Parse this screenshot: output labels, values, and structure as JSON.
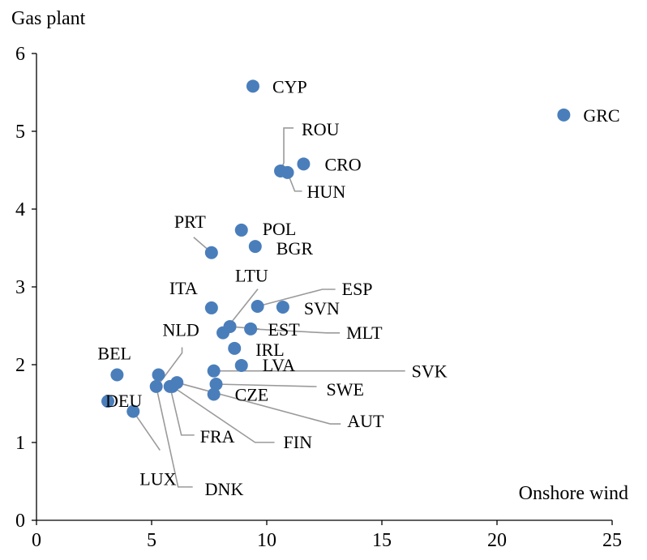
{
  "chart_data": {
    "type": "scatter",
    "title": "",
    "xlabel": "Onshore wind",
    "ylabel": "Gas plant",
    "xlim": [
      0,
      25
    ],
    "ylim": [
      0,
      6
    ],
    "x_ticks": [
      0,
      5,
      10,
      15,
      20,
      25
    ],
    "y_ticks": [
      0,
      1,
      2,
      3,
      4,
      5,
      6
    ],
    "grid": false,
    "marker_color": "#4A7EBB",
    "leader_color": "#9A9A9A",
    "points": [
      {
        "label": "CYP",
        "x": 9.4,
        "y": 5.58
      },
      {
        "label": "GRC",
        "x": 22.9,
        "y": 5.21
      },
      {
        "label": "ROU",
        "x": 10.6,
        "y": 4.49
      },
      {
        "label": "CRO",
        "x": 11.6,
        "y": 4.58
      },
      {
        "label": "HUN",
        "x": 10.9,
        "y": 4.47
      },
      {
        "label": "POL",
        "x": 8.9,
        "y": 3.73
      },
      {
        "label": "BGR",
        "x": 9.5,
        "y": 3.52
      },
      {
        "label": "PRT",
        "x": 7.6,
        "y": 3.44
      },
      {
        "label": "ITA",
        "x": 7.6,
        "y": 2.73
      },
      {
        "label": "LTU",
        "x": 8.1,
        "y": 2.41
      },
      {
        "label": "ESP",
        "x": 9.6,
        "y": 2.75
      },
      {
        "label": "SVN",
        "x": 10.7,
        "y": 2.74
      },
      {
        "label": "EST",
        "x": 8.4,
        "y": 2.49
      },
      {
        "label": "MLT",
        "x": 9.3,
        "y": 2.46
      },
      {
        "label": "IRL",
        "x": 8.6,
        "y": 2.21
      },
      {
        "label": "LVA",
        "x": 8.9,
        "y": 1.99
      },
      {
        "label": "SVK",
        "x": 7.7,
        "y": 1.92
      },
      {
        "label": "BEL",
        "x": 3.5,
        "y": 1.87
      },
      {
        "label": "NLD",
        "x": 5.3,
        "y": 1.87
      },
      {
        "label": "SWE",
        "x": 7.8,
        "y": 1.75
      },
      {
        "label": "CZE",
        "x": 7.7,
        "y": 1.62
      },
      {
        "label": "AUT",
        "x": 6.1,
        "y": 1.77
      },
      {
        "label": "FIN",
        "x": 5.9,
        "y": 1.72
      },
      {
        "label": "FRA",
        "x": 5.8,
        "y": 1.72
      },
      {
        "label": "DNK",
        "x": 5.2,
        "y": 1.72
      },
      {
        "label": "DEU",
        "x": 3.1,
        "y": 1.53
      },
      {
        "label": "LUX",
        "x": 4.2,
        "y": 1.4
      }
    ]
  }
}
